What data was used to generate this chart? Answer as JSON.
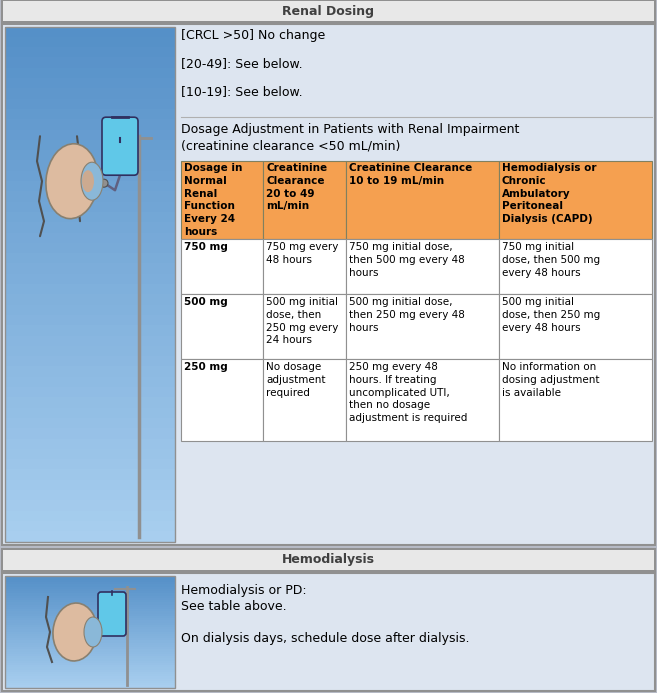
{
  "title1": "Renal Dosing",
  "title2": "Hemodialysis",
  "outer_bg": "#b8bcc8",
  "section_bg": "#dde5f0",
  "section_header_bg_gradient": [
    "#e0e0e0",
    "#c0c0c0"
  ],
  "image_cell_bg_top": "#7aaad8",
  "image_cell_bg_bot": "#aaccee",
  "table_header_bg": "#f5a050",
  "table_header_text_color": "#000000",
  "table_cell_bg": "#ffffff",
  "intro_lines": [
    "[CRCL >50] No change",
    "[20-49]: See below.",
    "[10-19]: See below."
  ],
  "dosage_subtitle": "Dosage Adjustment in Patients with Renal Impairment\n(creatinine clearance <50 mL/min)",
  "table_headers": [
    "Dosage in\nNormal\nRenal\nFunction\nEvery 24\nhours",
    "Creatinine\nClearance\n20 to 49\nmL/min",
    "Creatinine Clearance\n10 to 19 mL/min",
    "Hemodialysis or\nChronic\nAmbulatory\nPeritoneal\nDialysis (CAPD)"
  ],
  "table_rows": [
    {
      "dose": "750 mg",
      "col2": "750 mg every\n48 hours",
      "col3": "750 mg initial dose,\nthen 500 mg every 48\nhours",
      "col4": "750 mg initial\ndose, then 500 mg\nevery 48 hours"
    },
    {
      "dose": "500 mg",
      "col2": "500 mg initial\ndose, then\n250 mg every\n24 hours",
      "col3": "500 mg initial dose,\nthen 250 mg every 48\nhours",
      "col4": "500 mg initial\ndose, then 250 mg\nevery 48 hours"
    },
    {
      "dose": "250 mg",
      "col2": "No dosage\nadjustment\nrequired",
      "col3": "250 mg every 48\nhours. If treating\nuncomplicated UTI,\nthen no dosage\nadjustment is required",
      "col4": "No information on\ndosing adjustment\nis available"
    }
  ],
  "hemodialysis_lines": [
    "Hemodialysis or PD:",
    "See table above.",
    "",
    "On dialysis days, schedule dose after dialysis."
  ]
}
